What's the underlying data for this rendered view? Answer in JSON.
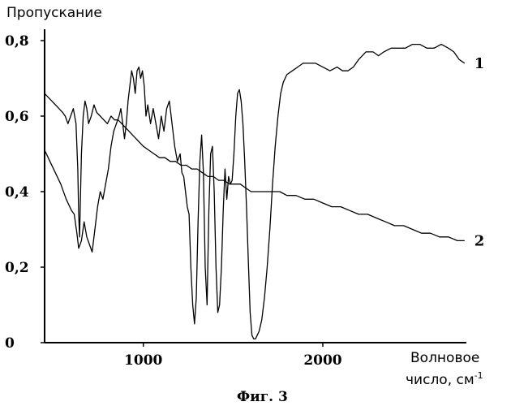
{
  "chart_data": {
    "type": "line",
    "title": "",
    "ylabel": "Пропускание",
    "xlabel_line1": "Волновое",
    "xlabel_line2": "число, см",
    "xlabel_sup": "-1",
    "caption": "Фиг. 3",
    "xlim": [
      450,
      2800
    ],
    "ylim": [
      0,
      0.8
    ],
    "x_ticks": [
      {
        "value": 1000,
        "label": "1000"
      },
      {
        "value": 2000,
        "label": "2000"
      }
    ],
    "y_ticks": [
      {
        "value": 0,
        "label": "0"
      },
      {
        "value": 0.2,
        "label": "0,2"
      },
      {
        "value": 0.4,
        "label": "0,4"
      },
      {
        "value": 0.6,
        "label": "0,6"
      },
      {
        "value": 0.8,
        "label": "0,8"
      }
    ],
    "series": [
      {
        "name": "1",
        "points": [
          [
            450,
            0.51
          ],
          [
            480,
            0.48
          ],
          [
            510,
            0.45
          ],
          [
            540,
            0.42
          ],
          [
            570,
            0.38
          ],
          [
            600,
            0.35
          ],
          [
            615,
            0.34
          ],
          [
            630,
            0.29
          ],
          [
            640,
            0.25
          ],
          [
            655,
            0.27
          ],
          [
            670,
            0.32
          ],
          [
            685,
            0.28
          ],
          [
            700,
            0.26
          ],
          [
            715,
            0.24
          ],
          [
            730,
            0.3
          ],
          [
            745,
            0.36
          ],
          [
            760,
            0.4
          ],
          [
            775,
            0.38
          ],
          [
            790,
            0.42
          ],
          [
            805,
            0.46
          ],
          [
            820,
            0.52
          ],
          [
            835,
            0.56
          ],
          [
            850,
            0.58
          ],
          [
            865,
            0.6
          ],
          [
            875,
            0.62
          ],
          [
            885,
            0.58
          ],
          [
            895,
            0.54
          ],
          [
            905,
            0.58
          ],
          [
            915,
            0.64
          ],
          [
            925,
            0.68
          ],
          [
            935,
            0.72
          ],
          [
            945,
            0.7
          ],
          [
            955,
            0.66
          ],
          [
            965,
            0.72
          ],
          [
            975,
            0.73
          ],
          [
            985,
            0.7
          ],
          [
            995,
            0.72
          ],
          [
            1005,
            0.68
          ],
          [
            1015,
            0.6
          ],
          [
            1025,
            0.63
          ],
          [
            1040,
            0.58
          ],
          [
            1055,
            0.62
          ],
          [
            1070,
            0.58
          ],
          [
            1085,
            0.54
          ],
          [
            1100,
            0.6
          ],
          [
            1115,
            0.56
          ],
          [
            1130,
            0.62
          ],
          [
            1145,
            0.64
          ],
          [
            1160,
            0.58
          ],
          [
            1175,
            0.52
          ],
          [
            1190,
            0.48
          ],
          [
            1205,
            0.5
          ],
          [
            1215,
            0.45
          ],
          [
            1225,
            0.44
          ],
          [
            1235,
            0.4
          ],
          [
            1245,
            0.36
          ],
          [
            1255,
            0.34
          ],
          [
            1265,
            0.2
          ],
          [
            1275,
            0.1
          ],
          [
            1285,
            0.05
          ],
          [
            1295,
            0.12
          ],
          [
            1305,
            0.32
          ],
          [
            1315,
            0.48
          ],
          [
            1325,
            0.55
          ],
          [
            1335,
            0.45
          ],
          [
            1345,
            0.2
          ],
          [
            1355,
            0.1
          ],
          [
            1365,
            0.35
          ],
          [
            1375,
            0.5
          ],
          [
            1385,
            0.52
          ],
          [
            1395,
            0.4
          ],
          [
            1405,
            0.2
          ],
          [
            1415,
            0.08
          ],
          [
            1425,
            0.1
          ],
          [
            1435,
            0.2
          ],
          [
            1445,
            0.35
          ],
          [
            1455,
            0.46
          ],
          [
            1465,
            0.38
          ],
          [
            1475,
            0.44
          ],
          [
            1485,
            0.42
          ],
          [
            1495,
            0.43
          ],
          [
            1505,
            0.5
          ],
          [
            1515,
            0.6
          ],
          [
            1525,
            0.66
          ],
          [
            1535,
            0.67
          ],
          [
            1545,
            0.64
          ],
          [
            1555,
            0.58
          ],
          [
            1565,
            0.48
          ],
          [
            1575,
            0.36
          ],
          [
            1585,
            0.22
          ],
          [
            1595,
            0.08
          ],
          [
            1605,
            0.02
          ],
          [
            1615,
            0.01
          ],
          [
            1625,
            0.01
          ],
          [
            1635,
            0.02
          ],
          [
            1645,
            0.03
          ],
          [
            1660,
            0.06
          ],
          [
            1675,
            0.12
          ],
          [
            1690,
            0.2
          ],
          [
            1705,
            0.3
          ],
          [
            1720,
            0.42
          ],
          [
            1735,
            0.52
          ],
          [
            1750,
            0.6
          ],
          [
            1765,
            0.66
          ],
          [
            1780,
            0.69
          ],
          [
            1800,
            0.71
          ],
          [
            1830,
            0.72
          ],
          [
            1860,
            0.73
          ],
          [
            1890,
            0.74
          ],
          [
            1920,
            0.74
          ],
          [
            1960,
            0.74
          ],
          [
            2000,
            0.73
          ],
          [
            2040,
            0.72
          ],
          [
            2080,
            0.73
          ],
          [
            2110,
            0.72
          ],
          [
            2140,
            0.72
          ],
          [
            2170,
            0.73
          ],
          [
            2200,
            0.75
          ],
          [
            2240,
            0.77
          ],
          [
            2280,
            0.77
          ],
          [
            2310,
            0.76
          ],
          [
            2340,
            0.77
          ],
          [
            2380,
            0.78
          ],
          [
            2420,
            0.78
          ],
          [
            2460,
            0.78
          ],
          [
            2500,
            0.79
          ],
          [
            2540,
            0.79
          ],
          [
            2580,
            0.78
          ],
          [
            2620,
            0.78
          ],
          [
            2660,
            0.79
          ],
          [
            2700,
            0.78
          ],
          [
            2730,
            0.77
          ],
          [
            2760,
            0.75
          ],
          [
            2790,
            0.74
          ]
        ]
      },
      {
        "name": "2",
        "points": [
          [
            450,
            0.66
          ],
          [
            470,
            0.65
          ],
          [
            490,
            0.64
          ],
          [
            510,
            0.63
          ],
          [
            530,
            0.62
          ],
          [
            550,
            0.61
          ],
          [
            565,
            0.6
          ],
          [
            580,
            0.58
          ],
          [
            595,
            0.6
          ],
          [
            610,
            0.62
          ],
          [
            625,
            0.58
          ],
          [
            635,
            0.46
          ],
          [
            640,
            0.34
          ],
          [
            645,
            0.28
          ],
          [
            655,
            0.5
          ],
          [
            665,
            0.6
          ],
          [
            675,
            0.64
          ],
          [
            685,
            0.62
          ],
          [
            695,
            0.58
          ],
          [
            710,
            0.6
          ],
          [
            725,
            0.63
          ],
          [
            740,
            0.61
          ],
          [
            760,
            0.6
          ],
          [
            780,
            0.59
          ],
          [
            800,
            0.58
          ],
          [
            820,
            0.6
          ],
          [
            840,
            0.59
          ],
          [
            860,
            0.59
          ],
          [
            880,
            0.58
          ],
          [
            900,
            0.57
          ],
          [
            920,
            0.56
          ],
          [
            940,
            0.55
          ],
          [
            960,
            0.54
          ],
          [
            980,
            0.53
          ],
          [
            1000,
            0.52
          ],
          [
            1030,
            0.51
          ],
          [
            1060,
            0.5
          ],
          [
            1090,
            0.49
          ],
          [
            1120,
            0.49
          ],
          [
            1150,
            0.48
          ],
          [
            1180,
            0.48
          ],
          [
            1210,
            0.47
          ],
          [
            1240,
            0.47
          ],
          [
            1270,
            0.46
          ],
          [
            1300,
            0.46
          ],
          [
            1330,
            0.45
          ],
          [
            1360,
            0.44
          ],
          [
            1390,
            0.44
          ],
          [
            1420,
            0.43
          ],
          [
            1450,
            0.43
          ],
          [
            1480,
            0.42
          ],
          [
            1510,
            0.42
          ],
          [
            1540,
            0.42
          ],
          [
            1570,
            0.41
          ],
          [
            1600,
            0.4
          ],
          [
            1630,
            0.4
          ],
          [
            1660,
            0.4
          ],
          [
            1690,
            0.4
          ],
          [
            1720,
            0.4
          ],
          [
            1760,
            0.4
          ],
          [
            1800,
            0.39
          ],
          [
            1850,
            0.39
          ],
          [
            1900,
            0.38
          ],
          [
            1950,
            0.38
          ],
          [
            2000,
            0.37
          ],
          [
            2050,
            0.36
          ],
          [
            2100,
            0.36
          ],
          [
            2150,
            0.35
          ],
          [
            2200,
            0.34
          ],
          [
            2250,
            0.34
          ],
          [
            2300,
            0.33
          ],
          [
            2350,
            0.32
          ],
          [
            2400,
            0.31
          ],
          [
            2450,
            0.31
          ],
          [
            2500,
            0.3
          ],
          [
            2550,
            0.29
          ],
          [
            2600,
            0.29
          ],
          [
            2650,
            0.28
          ],
          [
            2700,
            0.28
          ],
          [
            2750,
            0.27
          ],
          [
            2790,
            0.27
          ]
        ]
      }
    ]
  }
}
